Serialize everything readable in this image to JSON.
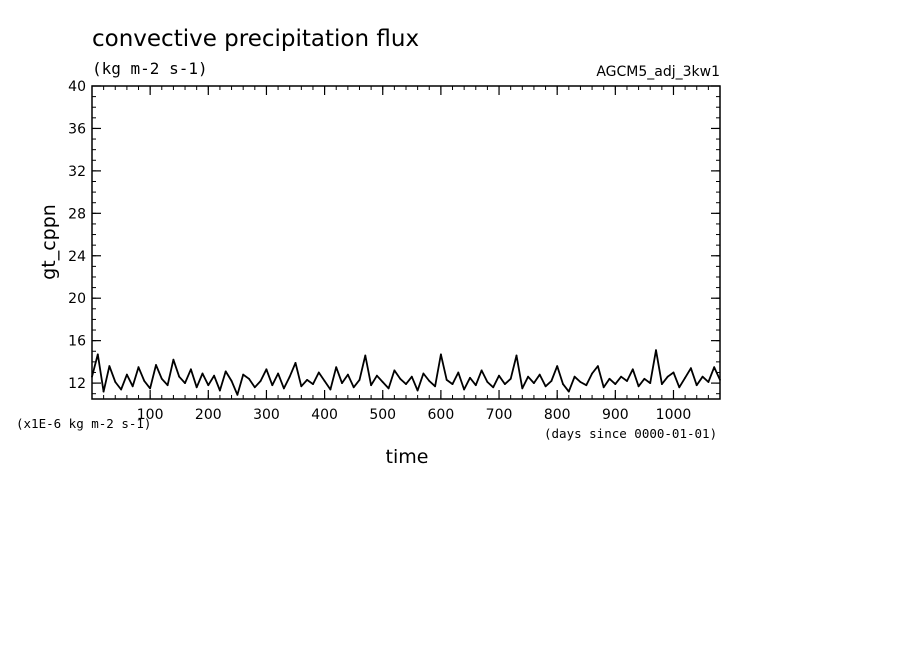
{
  "chart_data": {
    "type": "line",
    "title": "convective precipitation flux",
    "units": "(kg m-2 s-1)",
    "run_label": "AGCM5_adj_3kw1",
    "xlabel": "time",
    "ylabel": "gt_cppn",
    "y_scale_note": "(x1E-6 kg m-2 s-1)",
    "x_units_note": "(days since 0000-01-01)",
    "xlim": [
      0,
      1080
    ],
    "ylim": [
      10.5,
      40
    ],
    "x_ticks": [
      100,
      200,
      300,
      400,
      500,
      600,
      700,
      800,
      900,
      1000
    ],
    "x_tick_labels": [
      "100",
      "200",
      "300",
      "400",
      "500",
      "600",
      "700",
      "800",
      "900",
      "1000"
    ],
    "y_ticks": [
      12,
      16,
      20,
      24,
      28,
      32,
      36,
      40
    ],
    "y_tick_labels": [
      "12",
      "16",
      "20",
      "24",
      "28",
      "32",
      "36",
      "40"
    ],
    "line_color": "#000000",
    "series": [
      {
        "x": [
          0,
          10,
          20,
          30,
          40,
          50,
          60,
          70,
          80,
          90,
          100,
          110,
          120,
          130,
          140,
          150,
          160,
          170,
          180,
          190,
          200,
          210,
          220,
          230,
          240,
          250,
          260,
          270,
          280,
          290,
          300,
          310,
          320,
          330,
          340,
          350,
          360,
          370,
          380,
          390,
          400,
          410,
          420,
          430,
          440,
          450,
          460,
          470,
          480,
          490,
          500,
          510,
          520,
          530,
          540,
          550,
          560,
          570,
          580,
          590,
          600,
          610,
          620,
          630,
          640,
          650,
          660,
          670,
          680,
          690,
          700,
          710,
          720,
          730,
          740,
          750,
          760,
          770,
          780,
          790,
          800,
          810,
          820,
          830,
          840,
          850,
          860,
          870,
          880,
          890,
          900,
          910,
          920,
          930,
          940,
          950,
          960,
          970,
          980,
          990,
          1000,
          1010,
          1020,
          1030,
          1040,
          1050,
          1060,
          1070,
          1080
        ],
        "values": [
          12.6,
          14.7,
          11.2,
          13.6,
          12.1,
          11.4,
          12.8,
          11.7,
          13.5,
          12.2,
          11.5,
          13.7,
          12.4,
          11.8,
          14.2,
          12.6,
          12.0,
          13.3,
          11.6,
          12.9,
          11.8,
          12.7,
          11.3,
          13.1,
          12.2,
          10.9,
          12.8,
          12.4,
          11.6,
          12.2,
          13.3,
          11.8,
          12.9,
          11.5,
          12.6,
          13.9,
          11.7,
          12.3,
          11.9,
          13.0,
          12.2,
          11.4,
          13.5,
          12.0,
          12.8,
          11.6,
          12.3,
          14.6,
          11.8,
          12.7,
          12.1,
          11.5,
          13.2,
          12.4,
          11.9,
          12.6,
          11.3,
          12.9,
          12.2,
          11.7,
          14.7,
          12.3,
          11.9,
          13.0,
          11.4,
          12.5,
          11.8,
          13.2,
          12.1,
          11.6,
          12.7,
          11.9,
          12.4,
          14.6,
          11.5,
          12.6,
          12.0,
          12.8,
          11.7,
          12.2,
          13.6,
          11.9,
          11.2,
          12.6,
          12.1,
          11.8,
          12.9,
          13.6,
          11.6,
          12.4,
          11.9,
          12.6,
          12.2,
          13.3,
          11.7,
          12.4,
          12.0,
          15.1,
          11.9,
          12.6,
          13.0,
          11.6,
          12.5,
          13.4,
          11.8,
          12.6,
          12.1,
          13.5,
          12.3
        ]
      }
    ]
  }
}
